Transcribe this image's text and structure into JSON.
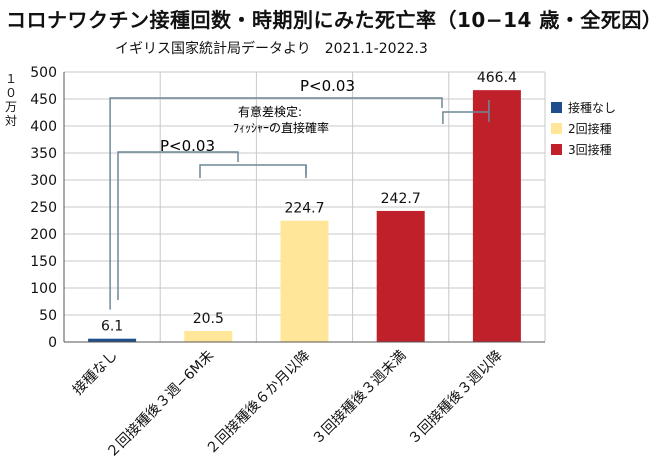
{
  "title": "コロナワクチン接種回数・時期別にみた死亡率（10−14 歳・全死因）",
  "subtitle": "イギリス国家統計局データより　2021.1-2022.3",
  "chart_data": {
    "type": "bar",
    "ylabel": "１０万対",
    "ylim": [
      0,
      500
    ],
    "yticks": [
      0,
      50,
      100,
      150,
      200,
      250,
      300,
      350,
      400,
      450,
      500
    ],
    "grid": true,
    "legend_position": "right",
    "categories": [
      "接種なし",
      "２回接種後３週−6M未",
      "２回接種後６か月以降",
      "３回接種後３週未満",
      "３回接種後３週以降"
    ],
    "values": [
      6.1,
      20.5,
      224.7,
      242.7,
      466.4
    ],
    "value_labels": [
      "6.1",
      "20.5",
      "224.7",
      "242.7",
      "466.4"
    ],
    "bar_colors": [
      "#1f4e8c",
      "#ffe699",
      "#ffe699",
      "#c0202a",
      "#c0202a"
    ],
    "legend": [
      {
        "label": "接種なし",
        "color": "#1f4e8c"
      },
      {
        "label": "2回接種",
        "color": "#ffe699"
      },
      {
        "label": "3回接種",
        "color": "#c0202a"
      }
    ],
    "annotations": {
      "p_top": "P<0.03",
      "p_mid": "P<0.03",
      "note_line1": "有意差検定:",
      "note_line2": "ﾌｨｯｼｬｰの直接確率"
    }
  }
}
